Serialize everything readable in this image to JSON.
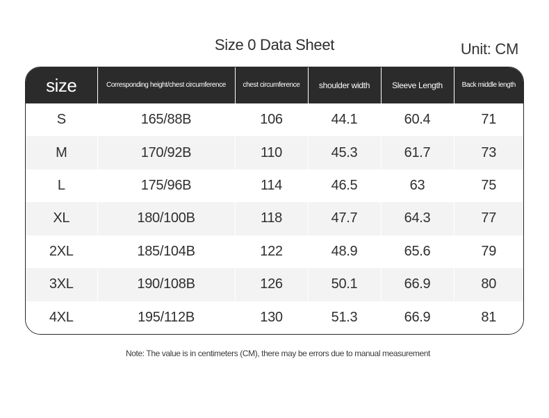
{
  "title": "Size 0 Data Sheet",
  "unit": "Unit: CM",
  "table": {
    "headers": [
      "size",
      "Corresponding height/chest circumference",
      "chest circumference",
      "shoulder width",
      "Sleeve Length",
      "Back middle length"
    ],
    "rows": [
      [
        "S",
        "165/88B",
        "106",
        "44.1",
        "60.4",
        "71"
      ],
      [
        "M",
        "170/92B",
        "110",
        "45.3",
        "61.7",
        "73"
      ],
      [
        "L",
        "175/96B",
        "114",
        "46.5",
        "63",
        "75"
      ],
      [
        "XL",
        "180/100B",
        "118",
        "47.7",
        "64.3",
        "77"
      ],
      [
        "2XL",
        "185/104B",
        "122",
        "48.9",
        "65.6",
        "79"
      ],
      [
        "3XL",
        "190/108B",
        "126",
        "50.1",
        "66.9",
        "80"
      ],
      [
        "4XL",
        "195/112B",
        "130",
        "51.3",
        "66.9",
        "81"
      ]
    ]
  },
  "note": "Note: The value is in centimeters (CM), there may be errors due to manual measurement",
  "colors": {
    "header_bg": "#2b2b2b",
    "row_alt_bg": "#f3f3f3",
    "text": "#2f2f2f"
  }
}
